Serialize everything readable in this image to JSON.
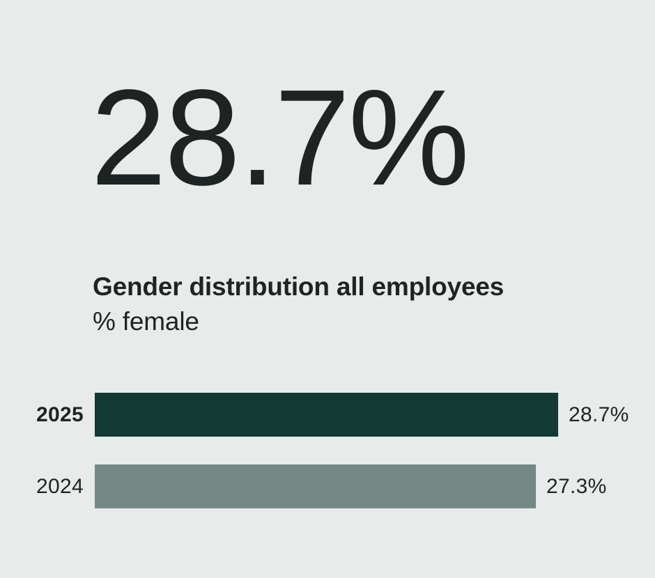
{
  "headline": {
    "value": "28.7%"
  },
  "section": {
    "title": "Gender distribution all employees",
    "subtitle": "% female"
  },
  "chart_data": {
    "type": "bar",
    "orientation": "horizontal",
    "title": "Gender distribution all employees",
    "subtitle": "% female",
    "unit": "% female",
    "categories": [
      "2025",
      "2024"
    ],
    "values": [
      28.7,
      27.3
    ],
    "value_labels": [
      "28.7%",
      "27.3%"
    ],
    "bar_colors": [
      "#123933",
      "#748985"
    ],
    "highlight_category": "2025",
    "xlim": [
      0,
      28.7
    ],
    "grid": "off",
    "legend": "none"
  },
  "colors": {
    "background": "#e8ebea",
    "text_primary": "#1e2424",
    "bar_2025": "#123933",
    "bar_2024": "#748985"
  }
}
